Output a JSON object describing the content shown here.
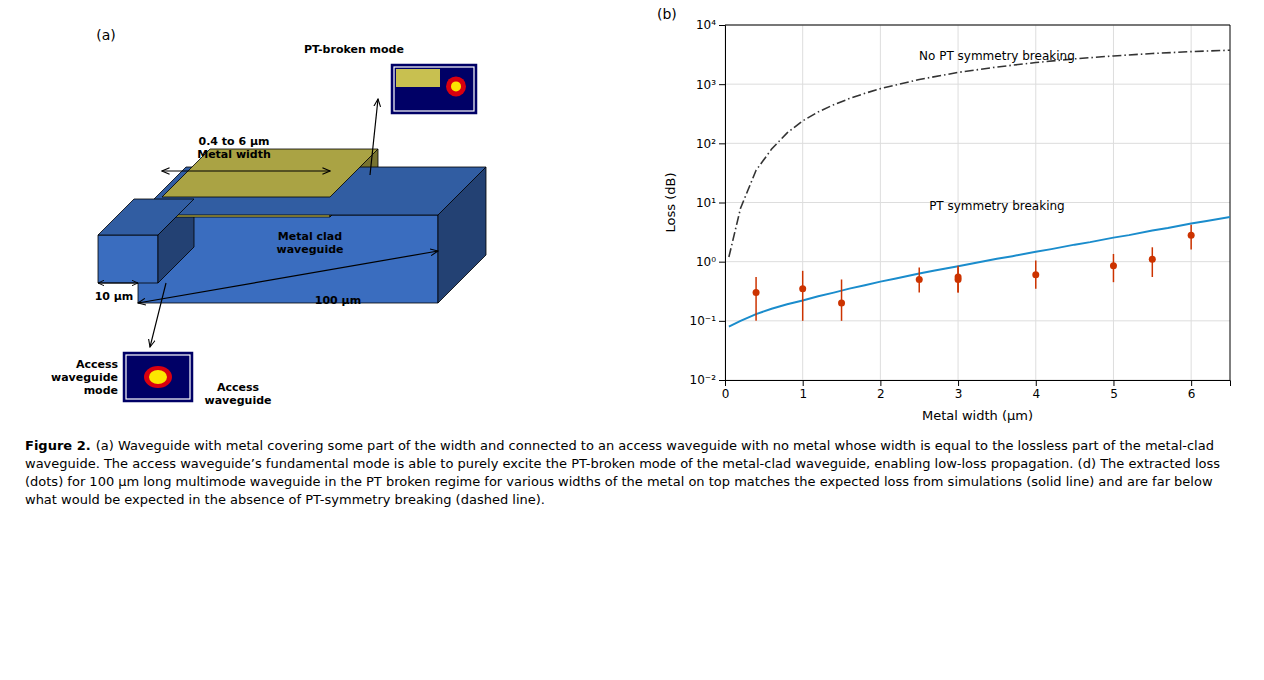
{
  "chart_data": {
    "type": "line",
    "xlabel": "Metal width (μm)",
    "ylabel": "Loss (dB)",
    "log": "y",
    "grid": true,
    "xlim": [
      0,
      6.5
    ],
    "ylim": [
      0.01,
      10000
    ],
    "xticks": [
      0,
      1,
      2,
      3,
      4,
      5,
      6
    ],
    "yticks": [
      {
        "value": 0.01,
        "label": "10⁻²"
      },
      {
        "value": 0.1,
        "label": "10⁻¹"
      },
      {
        "value": 1,
        "label": "10⁰"
      },
      {
        "value": 10,
        "label": "10¹"
      },
      {
        "value": 100,
        "label": "10²"
      },
      {
        "value": 1000,
        "label": "10³"
      },
      {
        "value": 10000,
        "label": "10⁴"
      }
    ],
    "series": [
      {
        "type": "line",
        "color": "#1a8ccc",
        "line_style": "solid",
        "x": [
          0.05,
          0.2,
          0.4,
          0.6,
          0.8,
          1.0,
          1.2,
          1.4,
          1.6,
          1.8,
          2.0,
          2.2,
          2.5,
          2.7,
          3.0,
          3.2,
          3.5,
          3.7,
          4.0,
          4.2,
          4.5,
          4.7,
          5.0,
          5.2,
          5.5,
          5.7,
          6.0,
          6.2,
          6.5
        ],
        "values": [
          0.08,
          0.1,
          0.13,
          0.16,
          0.19,
          0.22,
          0.26,
          0.3,
          0.35,
          0.4,
          0.46,
          0.52,
          0.63,
          0.71,
          0.84,
          0.94,
          1.12,
          1.24,
          1.47,
          1.63,
          1.94,
          2.14,
          2.55,
          2.81,
          3.35,
          3.7,
          4.4,
          4.86,
          5.68
        ]
      },
      {
        "type": "line",
        "color": "#333333",
        "line_style": "dashdot",
        "x": [
          0.05,
          0.2,
          0.4,
          0.6,
          0.8,
          1.0,
          1.2,
          1.4,
          1.6,
          1.8,
          2.0,
          2.5,
          3.0,
          3.5,
          4.0,
          4.5,
          5.0,
          5.5,
          6.0,
          6.5
        ],
        "values": [
          1.2,
          8.0,
          35.0,
          80.0,
          150.0,
          240.0,
          340.0,
          450.0,
          570.0,
          700.0,
          840.0,
          1200.0,
          1580.0,
          1950.0,
          2320.0,
          2680.0,
          3000.0,
          3300.0,
          3550.0,
          3750.0
        ]
      },
      {
        "type": "scatter",
        "color": "#cc3300",
        "marker": "circle",
        "x": [
          0.4,
          1.0,
          1.5,
          2.5,
          3.0,
          3.0,
          4.0,
          5.0,
          5.5,
          6.0
        ],
        "values": [
          0.3,
          0.35,
          0.2,
          0.5,
          0.55,
          0.5,
          0.6,
          0.85,
          1.1,
          2.8
        ],
        "error_low": [
          0.2,
          0.25,
          0.1,
          0.2,
          0.25,
          0.2,
          0.25,
          0.4,
          0.55,
          1.2
        ],
        "error_high": [
          0.25,
          0.35,
          0.3,
          0.3,
          0.3,
          0.3,
          0.45,
          0.5,
          0.65,
          1.4
        ]
      }
    ],
    "annotations": [
      {
        "text": "No PT symmetry breaking",
        "x": 3.5,
        "y": 2200
      },
      {
        "text": "PT symmetry breaking",
        "x": 3.5,
        "y": 6.5
      },
      "(a)",
      "(b)",
      "0.4 to 6 μm\nMetal width",
      "Metal clad\nwaveguide",
      "10 μm",
      "100 μm",
      "Access\nwaveguide\nmode",
      "Access\nwaveguide",
      "PT-broken mode",
      "Figure 2.",
      " (a) Waveguide with metal covering some part of the width and connected to an access waveguide with no metal whose width is equal to the lossless part of the metal-clad waveguide. The access waveguide’s fundamental mode is able to purely excite the PT-broken mode of the metal-clad waveguide, enabling low-loss propagation. (d) The extracted loss (dots) for 100 μm long multimode waveguide in the PT broken regime for various widths of the metal on top matches the expected loss from simulations (solid line) and are far below what would be expected in the absence of PT-symmetry breaking (dashed line)."
    ]
  }
}
